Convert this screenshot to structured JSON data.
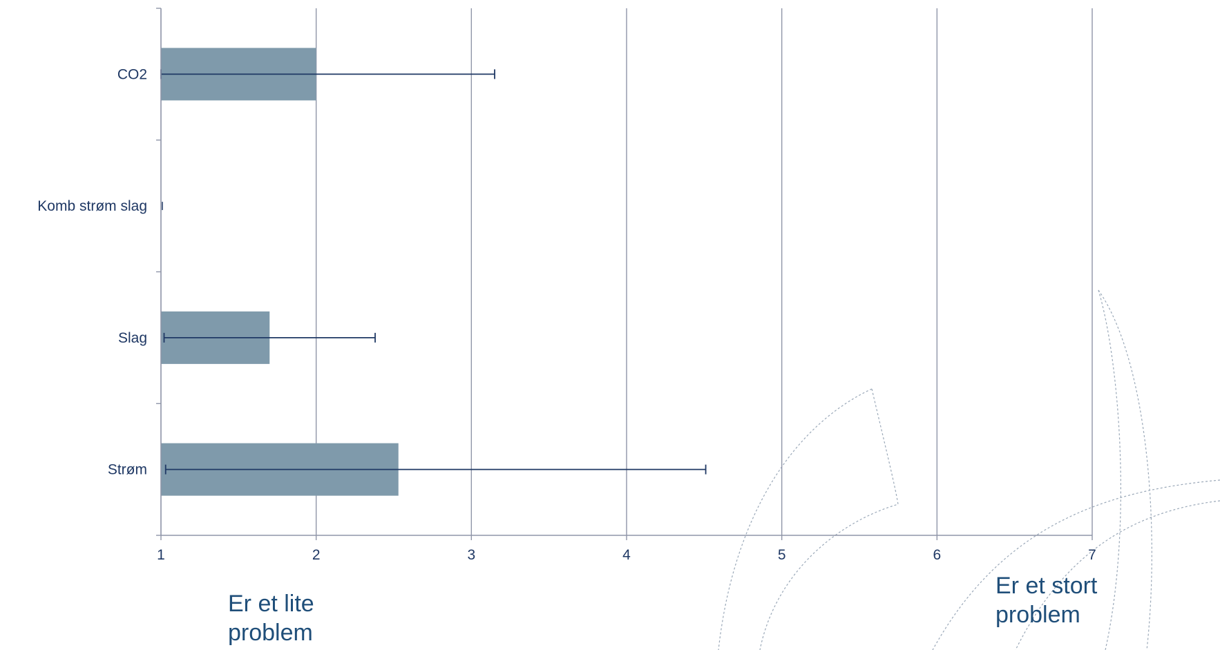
{
  "chart_data": {
    "type": "bar",
    "orientation": "horizontal",
    "categories": [
      "CO2",
      "Komb strøm slag",
      "Slag",
      "Strøm"
    ],
    "series": [
      {
        "values": [
          2.0,
          1.0,
          1.7,
          2.53
        ],
        "error_plus": [
          1.15,
          0,
          0.68,
          1.98
        ],
        "error_minus": [
          1.0,
          0,
          0.68,
          1.5
        ]
      }
    ],
    "xlim": [
      1,
      7
    ],
    "xticks": [
      "1",
      "2",
      "3",
      "4",
      "5",
      "6",
      "7"
    ],
    "grid": "vertical",
    "bar_color": "#7f9aab",
    "error_color": "#1f3864",
    "grid_color": "#8f95a8",
    "annotations": {
      "low": [
        "Er et lite",
        "problem"
      ],
      "high": [
        "Er et stort",
        "problem"
      ]
    }
  }
}
